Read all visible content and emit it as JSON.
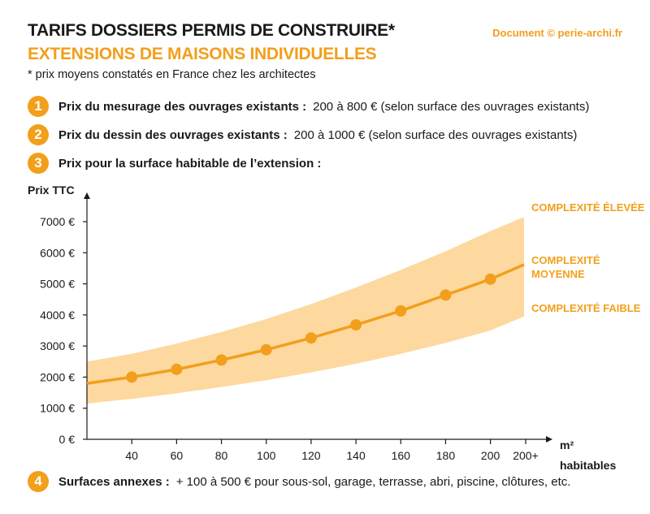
{
  "header": {
    "title": "TARIFS DOSSIERS PERMIS DE CONSTRUIRE*",
    "subtitle": "EXTENSIONS DE MAISONS INDIVIDUELLES",
    "note": "* prix moyens constatés en France chez les architectes",
    "credit": "Document © perie-archi.fr"
  },
  "items": [
    {
      "num": "1",
      "label": "Prix du mesurage des ouvrages existants :",
      "text": "200 à 800 € (selon surface des ouvrages existants)"
    },
    {
      "num": "2",
      "label": "Prix du dessin des ouvrages existants :",
      "text": "200 à 1000 € (selon surface des ouvrages existants)"
    },
    {
      "num": "3",
      "label": "Prix pour la surface habitable de l’extension :",
      "text": ""
    },
    {
      "num": "4",
      "label": "Surfaces annexes :",
      "text": "+ 100 à 500 € pour sous-sol, garage, terrasse, abri, piscine, clôtures, etc."
    }
  ],
  "chart_data": {
    "type": "line",
    "ylabel": "Prix TTC",
    "xlabel_line1": "m²",
    "xlabel_line2": "habitables",
    "x_ticks": [
      "40",
      "60",
      "80",
      "100",
      "120",
      "140",
      "160",
      "180",
      "200",
      "200+"
    ],
    "y_ticks": [
      "0 €",
      "1000 €",
      "2000 €",
      "3000 €",
      "4000 €",
      "5000 €",
      "6000 €",
      "7000 €"
    ],
    "ylim": [
      0,
      7500
    ],
    "xlim": [
      20,
      220
    ],
    "series": [
      {
        "name": "COMPLEXITÉ MOYENNE",
        "x": [
          20,
          40,
          60,
          80,
          100,
          120,
          140,
          160,
          180,
          200,
          215
        ],
        "values": [
          1800,
          2000,
          2250,
          2550,
          2880,
          3260,
          3680,
          4130,
          4640,
          5150,
          5620
        ],
        "markers_x": [
          40,
          60,
          80,
          100,
          120,
          140,
          160,
          180,
          200
        ]
      }
    ],
    "band": {
      "low_name": "COMPLEXITÉ FAIBLE",
      "high_name": "COMPLEXITÉ ÉLEVÉE",
      "x": [
        20,
        40,
        60,
        80,
        100,
        120,
        140,
        160,
        180,
        200,
        215
      ],
      "low": [
        1150,
        1300,
        1480,
        1680,
        1900,
        2150,
        2430,
        2750,
        3100,
        3500,
        3950
      ],
      "high": [
        2500,
        2750,
        3080,
        3450,
        3870,
        4350,
        4880,
        5450,
        6050,
        6700,
        7150
      ]
    },
    "colors": {
      "line": "#f29f1b",
      "band": "#fdd9a0",
      "axis": "#1a1a1a"
    }
  }
}
